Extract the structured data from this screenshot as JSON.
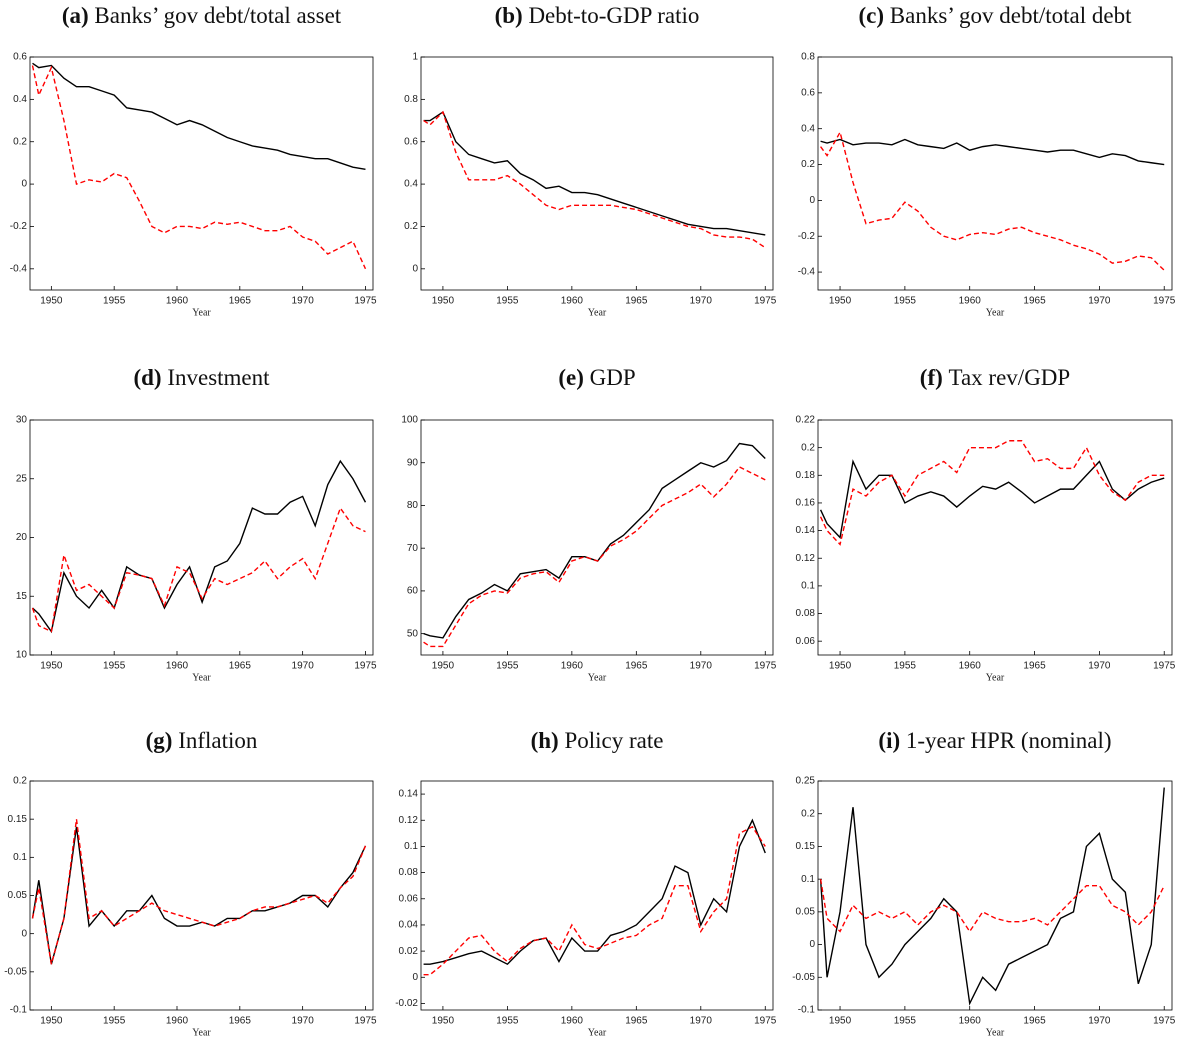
{
  "chart_data": [
    {
      "type": "line",
      "label": "(a)",
      "title": "Banks’ gov debt/total asset",
      "x_label": "Year",
      "x": [
        1948.5,
        1949,
        1950,
        1951,
        1952,
        1953,
        1954,
        1955,
        1956,
        1957,
        1958,
        1959,
        1960,
        1961,
        1962,
        1963,
        1964,
        1965,
        1966,
        1967,
        1968,
        1969,
        1970,
        1971,
        1972,
        1973,
        1974,
        1975
      ],
      "xlim": [
        1948.3,
        1975.6
      ],
      "xticks": [
        1950,
        1955,
        1960,
        1965,
        1970,
        1975
      ],
      "ylim": [
        -0.5,
        0.6
      ],
      "yticks": [
        -0.4,
        -0.2,
        0,
        0.2,
        0.4,
        0.6
      ],
      "series": [
        {
          "color": "#000000",
          "line_style": "solid",
          "values": [
            0.57,
            0.55,
            0.56,
            0.5,
            0.46,
            0.46,
            0.44,
            0.42,
            0.36,
            0.35,
            0.34,
            0.31,
            0.28,
            0.3,
            0.28,
            0.25,
            0.22,
            0.2,
            0.18,
            0.17,
            0.16,
            0.14,
            0.13,
            0.12,
            0.12,
            0.1,
            0.08,
            0.07
          ]
        },
        {
          "color": "#ff0000",
          "line_style": "dashed",
          "values": [
            0.56,
            0.42,
            0.55,
            0.3,
            0.0,
            0.02,
            0.01,
            0.05,
            0.03,
            -0.08,
            -0.2,
            -0.23,
            -0.2,
            -0.2,
            -0.21,
            -0.18,
            -0.19,
            -0.18,
            -0.2,
            -0.22,
            -0.22,
            -0.2,
            -0.25,
            -0.27,
            -0.33,
            -0.3,
            -0.27,
            -0.4
          ]
        }
      ]
    },
    {
      "type": "line",
      "label": "(b)",
      "title": "Debt-to-GDP ratio",
      "x_label": "Year",
      "x": [
        1948.5,
        1949,
        1950,
        1951,
        1952,
        1953,
        1954,
        1955,
        1956,
        1957,
        1958,
        1959,
        1960,
        1961,
        1962,
        1963,
        1964,
        1965,
        1966,
        1967,
        1968,
        1969,
        1970,
        1971,
        1972,
        1973,
        1974,
        1975
      ],
      "xlim": [
        1948.3,
        1975.6
      ],
      "xticks": [
        1950,
        1955,
        1960,
        1965,
        1970,
        1975
      ],
      "ylim": [
        -0.1,
        1
      ],
      "yticks": [
        0,
        0.2,
        0.4,
        0.6,
        0.8,
        1
      ],
      "series": [
        {
          "color": "#000000",
          "line_style": "solid",
          "values": [
            0.7,
            0.7,
            0.74,
            0.6,
            0.54,
            0.52,
            0.5,
            0.51,
            0.45,
            0.42,
            0.38,
            0.39,
            0.36,
            0.36,
            0.35,
            0.33,
            0.31,
            0.29,
            0.27,
            0.25,
            0.23,
            0.21,
            0.2,
            0.19,
            0.19,
            0.18,
            0.17,
            0.16
          ]
        },
        {
          "color": "#ff0000",
          "line_style": "dashed",
          "values": [
            0.7,
            0.68,
            0.74,
            0.55,
            0.42,
            0.42,
            0.42,
            0.44,
            0.4,
            0.35,
            0.3,
            0.28,
            0.3,
            0.3,
            0.3,
            0.3,
            0.29,
            0.28,
            0.26,
            0.24,
            0.22,
            0.2,
            0.19,
            0.16,
            0.15,
            0.15,
            0.14,
            0.1
          ]
        }
      ]
    },
    {
      "type": "line",
      "label": "(c)",
      "title": "Banks’ gov debt/total debt",
      "x_label": "Year",
      "x": [
        1948.5,
        1949,
        1950,
        1951,
        1952,
        1953,
        1954,
        1955,
        1956,
        1957,
        1958,
        1959,
        1960,
        1961,
        1962,
        1963,
        1964,
        1965,
        1966,
        1967,
        1968,
        1969,
        1970,
        1971,
        1972,
        1973,
        1974,
        1975
      ],
      "xlim": [
        1948.3,
        1975.6
      ],
      "xticks": [
        1950,
        1955,
        1960,
        1965,
        1970,
        1975
      ],
      "ylim": [
        -0.5,
        0.8
      ],
      "yticks": [
        -0.4,
        -0.2,
        0,
        0.2,
        0.4,
        0.6,
        0.8
      ],
      "series": [
        {
          "color": "#000000",
          "line_style": "solid",
          "values": [
            0.33,
            0.32,
            0.34,
            0.31,
            0.32,
            0.32,
            0.31,
            0.34,
            0.31,
            0.3,
            0.29,
            0.32,
            0.28,
            0.3,
            0.31,
            0.3,
            0.29,
            0.28,
            0.27,
            0.28,
            0.28,
            0.26,
            0.24,
            0.26,
            0.25,
            0.22,
            0.21,
            0.2
          ]
        },
        {
          "color": "#ff0000",
          "line_style": "dashed",
          "values": [
            0.3,
            0.25,
            0.38,
            0.1,
            -0.13,
            -0.11,
            -0.1,
            -0.01,
            -0.06,
            -0.15,
            -0.2,
            -0.22,
            -0.19,
            -0.18,
            -0.19,
            -0.16,
            -0.15,
            -0.18,
            -0.2,
            -0.22,
            -0.25,
            -0.27,
            -0.3,
            -0.35,
            -0.34,
            -0.31,
            -0.32,
            -0.39
          ]
        }
      ]
    },
    {
      "type": "line",
      "label": "(d)",
      "title": "Investment",
      "x_label": "Year",
      "x": [
        1948.5,
        1949,
        1950,
        1951,
        1952,
        1953,
        1954,
        1955,
        1956,
        1957,
        1958,
        1959,
        1960,
        1961,
        1962,
        1963,
        1964,
        1965,
        1966,
        1967,
        1968,
        1969,
        1970,
        1971,
        1972,
        1973,
        1974,
        1975
      ],
      "xlim": [
        1948.3,
        1975.6
      ],
      "xticks": [
        1950,
        1955,
        1960,
        1965,
        1970,
        1975
      ],
      "ylim": [
        10,
        30
      ],
      "yticks": [
        10,
        15,
        20,
        25,
        30
      ],
      "series": [
        {
          "color": "#000000",
          "line_style": "solid",
          "values": [
            14,
            13.5,
            12,
            17,
            15,
            14,
            15.5,
            14,
            17.5,
            16.8,
            16.5,
            14,
            16,
            17.5,
            14.5,
            17.5,
            18,
            19.5,
            22.5,
            22,
            22,
            23,
            23.5,
            21,
            24.5,
            26.5,
            25,
            23
          ]
        },
        {
          "color": "#ff0000",
          "line_style": "dashed",
          "values": [
            14,
            12.5,
            12,
            18.5,
            15.5,
            16,
            15,
            14,
            17,
            16.8,
            16.5,
            14.2,
            17.5,
            17,
            14.8,
            16.5,
            16,
            16.5,
            17,
            18,
            16.5,
            17.5,
            18.2,
            16.5,
            19.5,
            22.5,
            21,
            20.5
          ]
        }
      ]
    },
    {
      "type": "line",
      "label": "(e)",
      "title": "GDP",
      "x_label": "Year",
      "x": [
        1948.5,
        1949,
        1950,
        1951,
        1952,
        1953,
        1954,
        1955,
        1956,
        1957,
        1958,
        1959,
        1960,
        1961,
        1962,
        1963,
        1964,
        1965,
        1966,
        1967,
        1968,
        1969,
        1970,
        1971,
        1972,
        1973,
        1974,
        1975
      ],
      "xlim": [
        1948.3,
        1975.6
      ],
      "xticks": [
        1950,
        1955,
        1960,
        1965,
        1970,
        1975
      ],
      "ylim": [
        45,
        100
      ],
      "yticks": [
        50,
        60,
        70,
        80,
        90,
        100
      ],
      "series": [
        {
          "color": "#000000",
          "line_style": "solid",
          "values": [
            50,
            49.5,
            49,
            54,
            58,
            59.5,
            61.5,
            60,
            64,
            64.5,
            65,
            63,
            68,
            68,
            67,
            71,
            73,
            76,
            79,
            84,
            86,
            88,
            90,
            89,
            90.5,
            94.5,
            94,
            91
          ]
        },
        {
          "color": "#ff0000",
          "line_style": "dashed",
          "values": [
            48,
            47,
            47,
            52,
            57,
            59,
            60,
            59.5,
            63,
            64,
            64.5,
            62,
            67,
            68,
            67,
            70.5,
            72,
            74,
            77,
            80,
            81.5,
            83,
            85,
            82,
            85,
            89,
            87.5,
            86
          ]
        }
      ]
    },
    {
      "type": "line",
      "label": "(f)",
      "title": "Tax rev/GDP",
      "x_label": "Year",
      "x": [
        1948.5,
        1949,
        1950,
        1951,
        1952,
        1953,
        1954,
        1955,
        1956,
        1957,
        1958,
        1959,
        1960,
        1961,
        1962,
        1963,
        1964,
        1965,
        1966,
        1967,
        1968,
        1969,
        1970,
        1971,
        1972,
        1973,
        1974,
        1975
      ],
      "xlim": [
        1948.3,
        1975.6
      ],
      "xticks": [
        1950,
        1955,
        1960,
        1965,
        1970,
        1975
      ],
      "ylim": [
        0.05,
        0.22
      ],
      "yticks": [
        0.06,
        0.08,
        0.1,
        0.12,
        0.14,
        0.16,
        0.18,
        0.2,
        0.22
      ],
      "series": [
        {
          "color": "#000000",
          "line_style": "solid",
          "values": [
            0.155,
            0.145,
            0.135,
            0.19,
            0.17,
            0.18,
            0.18,
            0.16,
            0.165,
            0.168,
            0.165,
            0.157,
            0.165,
            0.172,
            0.17,
            0.175,
            0.168,
            0.16,
            0.165,
            0.17,
            0.17,
            0.18,
            0.19,
            0.17,
            0.162,
            0.17,
            0.175,
            0.178
          ]
        },
        {
          "color": "#ff0000",
          "line_style": "dashed",
          "values": [
            0.15,
            0.14,
            0.13,
            0.17,
            0.165,
            0.175,
            0.18,
            0.165,
            0.18,
            0.185,
            0.19,
            0.182,
            0.2,
            0.2,
            0.2,
            0.205,
            0.205,
            0.19,
            0.192,
            0.185,
            0.185,
            0.2,
            0.18,
            0.168,
            0.162,
            0.175,
            0.18,
            0.18
          ]
        }
      ]
    },
    {
      "type": "line",
      "label": "(g)",
      "title": "Inflation",
      "x_label": "Year",
      "x": [
        1948.5,
        1949,
        1950,
        1951,
        1952,
        1953,
        1954,
        1955,
        1956,
        1957,
        1958,
        1959,
        1960,
        1961,
        1962,
        1963,
        1964,
        1965,
        1966,
        1967,
        1968,
        1969,
        1970,
        1971,
        1972,
        1973,
        1974,
        1975
      ],
      "xlim": [
        1948.3,
        1975.6
      ],
      "xticks": [
        1950,
        1955,
        1960,
        1965,
        1970,
        1975
      ],
      "ylim": [
        -0.1,
        0.2
      ],
      "yticks": [
        -0.1,
        -0.05,
        0,
        0.05,
        0.1,
        0.15,
        0.2
      ],
      "series": [
        {
          "color": "#000000",
          "line_style": "solid",
          "values": [
            0.02,
            0.07,
            -0.04,
            0.02,
            0.14,
            0.01,
            0.03,
            0.01,
            0.03,
            0.03,
            0.05,
            0.02,
            0.01,
            0.01,
            0.015,
            0.01,
            0.02,
            0.02,
            0.03,
            0.03,
            0.035,
            0.04,
            0.05,
            0.05,
            0.035,
            0.06,
            0.08,
            0.115
          ]
        },
        {
          "color": "#ff0000",
          "line_style": "dashed",
          "values": [
            0.02,
            0.06,
            -0.04,
            0.02,
            0.15,
            0.02,
            0.03,
            0.01,
            0.02,
            0.03,
            0.04,
            0.03,
            0.025,
            0.02,
            0.015,
            0.01,
            0.015,
            0.02,
            0.03,
            0.035,
            0.035,
            0.04,
            0.045,
            0.05,
            0.04,
            0.06,
            0.075,
            0.115
          ]
        }
      ]
    },
    {
      "type": "line",
      "label": "(h)",
      "title": "Policy rate",
      "x_label": "Year",
      "x": [
        1948.5,
        1949,
        1950,
        1951,
        1952,
        1953,
        1954,
        1955,
        1956,
        1957,
        1958,
        1959,
        1960,
        1961,
        1962,
        1963,
        1964,
        1965,
        1966,
        1967,
        1968,
        1969,
        1970,
        1971,
        1972,
        1973,
        1974,
        1975
      ],
      "xlim": [
        1948.3,
        1975.6
      ],
      "xticks": [
        1950,
        1955,
        1960,
        1965,
        1970,
        1975
      ],
      "ylim": [
        -0.025,
        0.15
      ],
      "yticks": [
        -0.02,
        0,
        0.02,
        0.04,
        0.06,
        0.08,
        0.1,
        0.12,
        0.14
      ],
      "series": [
        {
          "color": "#000000",
          "line_style": "solid",
          "values": [
            0.01,
            0.01,
            0.012,
            0.015,
            0.018,
            0.02,
            0.015,
            0.01,
            0.02,
            0.028,
            0.03,
            0.012,
            0.03,
            0.02,
            0.02,
            0.032,
            0.035,
            0.04,
            0.05,
            0.06,
            0.085,
            0.08,
            0.04,
            0.06,
            0.05,
            0.1,
            0.12,
            0.095
          ]
        },
        {
          "color": "#ff0000",
          "line_style": "dashed",
          "values": [
            0.002,
            0.002,
            0.01,
            0.02,
            0.03,
            0.032,
            0.02,
            0.012,
            0.022,
            0.028,
            0.03,
            0.02,
            0.04,
            0.025,
            0.022,
            0.026,
            0.03,
            0.032,
            0.04,
            0.045,
            0.07,
            0.07,
            0.035,
            0.05,
            0.06,
            0.11,
            0.115,
            0.1
          ]
        }
      ]
    },
    {
      "type": "line",
      "label": "(i)",
      "title": "1-year HPR (nominal)",
      "x_label": "Year",
      "x": [
        1948.5,
        1949,
        1950,
        1951,
        1952,
        1953,
        1954,
        1955,
        1956,
        1957,
        1958,
        1959,
        1960,
        1961,
        1962,
        1963,
        1964,
        1965,
        1966,
        1967,
        1968,
        1969,
        1970,
        1971,
        1972,
        1973,
        1974,
        1975
      ],
      "xlim": [
        1948.3,
        1975.6
      ],
      "xticks": [
        1950,
        1955,
        1960,
        1965,
        1970,
        1975
      ],
      "ylim": [
        -0.1,
        0.25
      ],
      "yticks": [
        -0.1,
        -0.05,
        0,
        0.05,
        0.1,
        0.15,
        0.2,
        0.25
      ],
      "series": [
        {
          "color": "#000000",
          "line_style": "solid",
          "values": [
            0.1,
            -0.05,
            0.05,
            0.21,
            0.0,
            -0.05,
            -0.03,
            0.0,
            0.02,
            0.04,
            0.07,
            0.05,
            -0.09,
            -0.05,
            -0.07,
            -0.03,
            -0.02,
            -0.01,
            0.0,
            0.04,
            0.05,
            0.15,
            0.17,
            0.1,
            0.08,
            -0.06,
            0.0,
            0.24
          ]
        },
        {
          "color": "#ff0000",
          "line_style": "dashed",
          "values": [
            0.1,
            0.04,
            0.02,
            0.06,
            0.04,
            0.05,
            0.04,
            0.05,
            0.03,
            0.05,
            0.06,
            0.05,
            0.02,
            0.05,
            0.04,
            0.035,
            0.035,
            0.04,
            0.03,
            0.05,
            0.07,
            0.09,
            0.09,
            0.06,
            0.05,
            0.03,
            0.05,
            0.09
          ]
        }
      ]
    }
  ]
}
